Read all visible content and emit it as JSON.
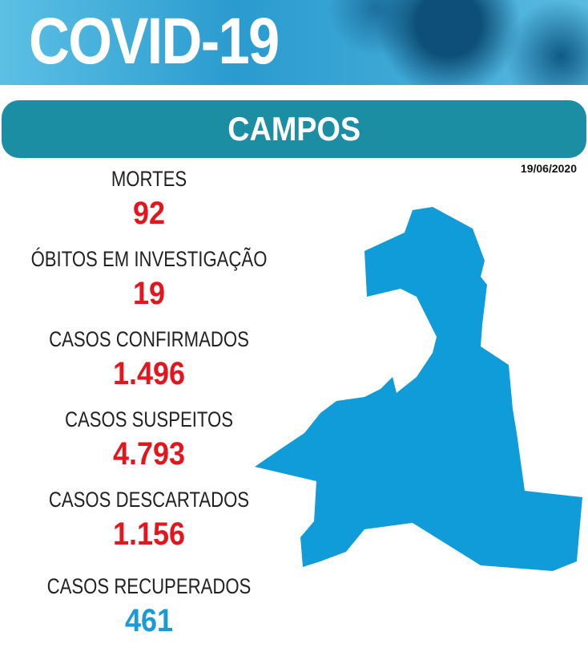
{
  "header": {
    "title": "COVID-19"
  },
  "banner": {
    "title": "CAMPOS"
  },
  "date": "19/06/2020",
  "stats": [
    {
      "label": "MORTES",
      "value": "92"
    },
    {
      "label": "ÓBITOS EM INVESTIGAÇÃO",
      "value": "19"
    },
    {
      "label": "CASOS CONFIRMADOS",
      "value": "1.496"
    },
    {
      "label": "CASOS SUSPEITOS",
      "value": "4.793"
    },
    {
      "label": "CASOS DESCARTADOS",
      "value": "1.156"
    },
    {
      "label": "CASOS RECUPERADOS",
      "value": "461"
    }
  ]
}
